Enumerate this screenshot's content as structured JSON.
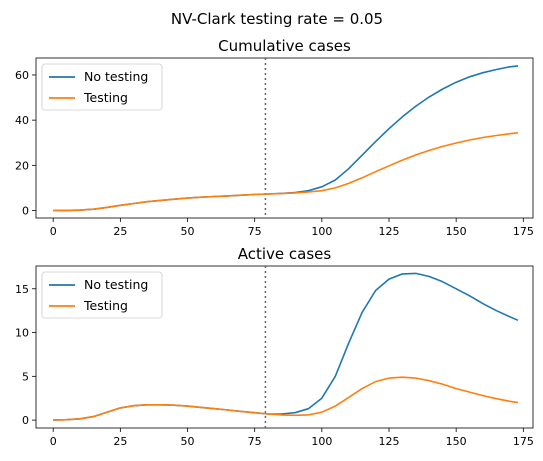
{
  "figure": {
    "suptitle": "NV-Clark testing rate = 0.05"
  },
  "chart_data": [
    {
      "type": "line",
      "title": "Cumulative cases",
      "xlabel": "",
      "ylabel": "",
      "xlim": [
        -6.4,
        178.6
      ],
      "ylim": [
        -3.3,
        67.5
      ],
      "xticks": [
        0,
        25,
        50,
        75,
        100,
        125,
        150,
        175
      ],
      "yticks": [
        0,
        20,
        40,
        60
      ],
      "vline_x": 79,
      "legend": "upper left",
      "series": [
        {
          "name": "No testing",
          "color": "#1f77b4",
          "x": [
            0,
            5,
            10,
            15,
            20,
            25,
            30,
            35,
            40,
            45,
            50,
            55,
            60,
            65,
            70,
            75,
            80,
            85,
            90,
            95,
            100,
            105,
            110,
            115,
            120,
            125,
            130,
            135,
            140,
            145,
            150,
            155,
            160,
            165,
            170,
            173
          ],
          "y": [
            0,
            0.05,
            0.2,
            0.6,
            1.4,
            2.3,
            3.1,
            3.9,
            4.5,
            5.0,
            5.5,
            5.9,
            6.2,
            6.5,
            6.8,
            7.1,
            7.3,
            7.6,
            8.0,
            8.8,
            10.5,
            13.5,
            18.5,
            24.5,
            30.5,
            36.2,
            41.5,
            46.2,
            50.3,
            53.8,
            56.8,
            59.2,
            61.0,
            62.4,
            63.6,
            64.0
          ]
        },
        {
          "name": "Testing",
          "color": "#ff7f0e",
          "x": [
            0,
            5,
            10,
            15,
            20,
            25,
            30,
            35,
            40,
            45,
            50,
            55,
            60,
            65,
            70,
            75,
            80,
            85,
            90,
            95,
            100,
            105,
            110,
            115,
            120,
            125,
            130,
            135,
            140,
            145,
            150,
            155,
            160,
            165,
            170,
            173
          ],
          "y": [
            0,
            0.05,
            0.2,
            0.6,
            1.4,
            2.3,
            3.1,
            3.9,
            4.5,
            5.0,
            5.5,
            5.9,
            6.2,
            6.5,
            6.8,
            7.1,
            7.3,
            7.5,
            7.8,
            8.2,
            8.8,
            10.0,
            12.0,
            14.5,
            17.2,
            19.8,
            22.3,
            24.6,
            26.6,
            28.4,
            29.9,
            31.2,
            32.3,
            33.2,
            34.0,
            34.4
          ]
        }
      ]
    },
    {
      "type": "line",
      "title": "Active cases",
      "xlabel": "",
      "ylabel": "",
      "xlim": [
        -6.4,
        178.6
      ],
      "ylim": [
        -0.9,
        17.6
      ],
      "xticks": [
        0,
        25,
        50,
        75,
        100,
        125,
        150,
        175
      ],
      "yticks": [
        0,
        5,
        10,
        15
      ],
      "vline_x": 79,
      "legend": "upper left",
      "series": [
        {
          "name": "No testing",
          "color": "#1f77b4",
          "x": [
            0,
            5,
            10,
            15,
            20,
            25,
            30,
            35,
            40,
            45,
            50,
            55,
            60,
            65,
            70,
            75,
            80,
            85,
            90,
            95,
            100,
            105,
            110,
            115,
            120,
            125,
            130,
            135,
            140,
            145,
            150,
            155,
            160,
            165,
            170,
            173
          ],
          "y": [
            0,
            0.05,
            0.15,
            0.4,
            0.9,
            1.4,
            1.65,
            1.75,
            1.75,
            1.7,
            1.6,
            1.45,
            1.3,
            1.15,
            1.0,
            0.85,
            0.7,
            0.7,
            0.85,
            1.3,
            2.5,
            5.0,
            8.8,
            12.3,
            14.8,
            16.1,
            16.7,
            16.75,
            16.4,
            15.8,
            15.0,
            14.2,
            13.3,
            12.5,
            11.8,
            11.4
          ]
        },
        {
          "name": "Testing",
          "color": "#ff7f0e",
          "x": [
            0,
            5,
            10,
            15,
            20,
            25,
            30,
            35,
            40,
            45,
            50,
            55,
            60,
            65,
            70,
            75,
            80,
            85,
            90,
            95,
            100,
            105,
            110,
            115,
            120,
            125,
            130,
            135,
            140,
            145,
            150,
            155,
            160,
            165,
            170,
            173
          ],
          "y": [
            0,
            0.05,
            0.15,
            0.4,
            0.9,
            1.4,
            1.65,
            1.75,
            1.75,
            1.7,
            1.6,
            1.45,
            1.3,
            1.15,
            1.0,
            0.85,
            0.7,
            0.6,
            0.55,
            0.6,
            0.9,
            1.6,
            2.6,
            3.6,
            4.4,
            4.8,
            4.9,
            4.8,
            4.5,
            4.1,
            3.6,
            3.2,
            2.8,
            2.45,
            2.15,
            2.0
          ]
        }
      ]
    }
  ]
}
